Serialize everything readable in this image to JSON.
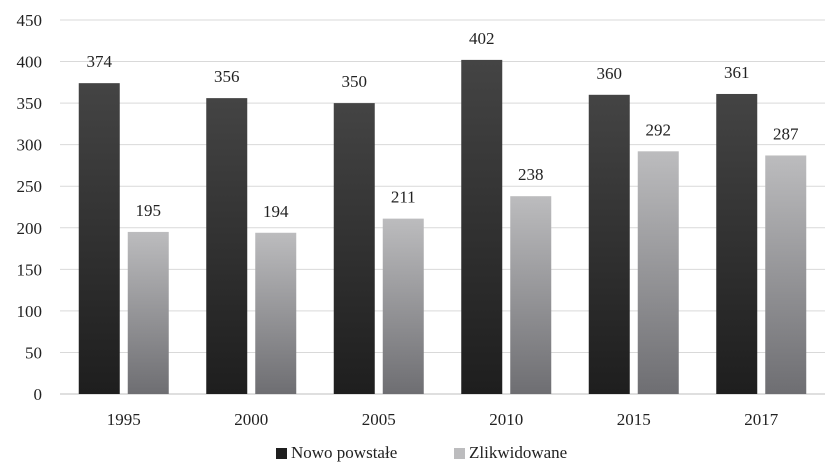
{
  "chart_data": {
    "type": "bar",
    "title": "",
    "xlabel": "",
    "ylabel": "",
    "categories": [
      "1995",
      "2000",
      "2005",
      "2010",
      "2015",
      "2017"
    ],
    "series": [
      {
        "name": "Nowo powstałe",
        "values": [
          374,
          356,
          350,
          402,
          360,
          361
        ]
      },
      {
        "name": "Zlikwidowane",
        "values": [
          195,
          194,
          211,
          238,
          292,
          287
        ]
      }
    ],
    "ylim": [
      0,
      450
    ],
    "yticks": [
      "0",
      "50",
      "100",
      "150",
      "200",
      "250",
      "300",
      "350",
      "400",
      "450"
    ],
    "grid": true,
    "data_labels": true,
    "legend_position": "bottom",
    "colors": {
      "series_1_top": "#444444",
      "series_1_bottom": "#1e1e1e",
      "series_2_top": "#bcbcbe",
      "series_2_bottom": "#6e6e72"
    }
  }
}
